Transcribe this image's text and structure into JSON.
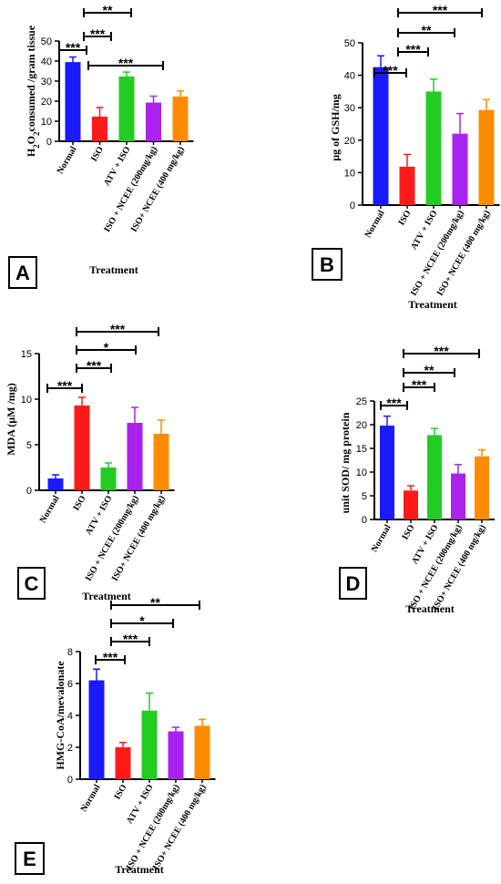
{
  "chart_data": [
    {
      "type": "bar",
      "panel": "A",
      "ylabel": "H2O2consumed /gram tissue",
      "ylabel_parts": [
        "H",
        "2",
        "O",
        "2",
        "consumed /gram tissue"
      ],
      "xlabel": "Treatment",
      "ylim": [
        0,
        50
      ],
      "yticks": [
        0,
        10,
        20,
        30,
        40,
        50
      ],
      "grid": false,
      "legend": "none",
      "categories": [
        "Normal",
        "ISO",
        "ATV + ISO",
        "ISO + NCEE (200mg/kg)",
        "ISO+ NCEE (400 mg/kg)"
      ],
      "values": [
        39.5,
        12.3,
        32.3,
        19.3,
        22.3
      ],
      "errors": [
        2.5,
        4.5,
        2.2,
        3.2,
        2.8
      ],
      "colors": [
        "#1a1aff",
        "#ff1a1a",
        "#22cc22",
        "#aa22ee",
        "#ff8c00"
      ],
      "significance": [
        {
          "from": 0,
          "to": 1,
          "label": "***"
        },
        {
          "from": 1,
          "to": 2,
          "label": "***"
        },
        {
          "from": 1,
          "to": 2,
          "label": "**"
        },
        {
          "from": 1,
          "to": 4,
          "label": "***"
        }
      ]
    },
    {
      "type": "bar",
      "panel": "B",
      "ylabel": "µg of GSH/mg",
      "xlabel": "Treatment",
      "ylim": [
        0,
        50
      ],
      "yticks": [
        0,
        10,
        20,
        30,
        40,
        50
      ],
      "grid": false,
      "legend": "none",
      "categories": [
        "Normal",
        "ISO",
        "ATV + ISO",
        "ISO + NCEE (200mg/kg)",
        "ISO+ NCEE (400 mg/kg)"
      ],
      "values": [
        42.5,
        11.8,
        35.0,
        22.0,
        29.3
      ],
      "errors": [
        3.5,
        3.8,
        3.8,
        6.2,
        3.2
      ],
      "colors": [
        "#1a1aff",
        "#ff1a1a",
        "#22cc22",
        "#aa22ee",
        "#ff8c00"
      ],
      "significance": [
        {
          "from": 0,
          "to": 1,
          "label": "***"
        },
        {
          "from": 1,
          "to": 2,
          "label": "***"
        },
        {
          "from": 1,
          "to": 3,
          "label": "**"
        },
        {
          "from": 1,
          "to": 4,
          "label": "***"
        }
      ]
    },
    {
      "type": "bar",
      "panel": "C",
      "ylabel": "MDA (µM /mg)",
      "xlabel": "Treatment",
      "ylim": [
        0,
        15
      ],
      "yticks": [
        0,
        5,
        10,
        15
      ],
      "grid": false,
      "legend": "none",
      "categories": [
        "Normal",
        "ISO",
        "ATV + ISO",
        "ISO + NCEE (200mg/kg)",
        "ISO+ NCEE (400 mg/kg)"
      ],
      "values": [
        1.3,
        9.3,
        2.5,
        7.4,
        6.2
      ],
      "errors": [
        0.4,
        0.9,
        0.5,
        1.7,
        1.5
      ],
      "colors": [
        "#1a1aff",
        "#ff1a1a",
        "#22cc22",
        "#aa22ee",
        "#ff8c00"
      ],
      "significance": [
        {
          "from": 0,
          "to": 1,
          "label": "***"
        },
        {
          "from": 1,
          "to": 2,
          "label": "***"
        },
        {
          "from": 1,
          "to": 3,
          "label": "*"
        },
        {
          "from": 1,
          "to": 4,
          "label": "***"
        }
      ]
    },
    {
      "type": "bar",
      "panel": "D",
      "ylabel": "unit SOD/ mg protein",
      "xlabel": "Treatment",
      "ylim": [
        0,
        25
      ],
      "yticks": [
        0,
        5,
        10,
        15,
        20,
        25
      ],
      "grid": false,
      "legend": "none",
      "categories": [
        "Normal",
        "ISO",
        "ATV + ISO",
        "ISO + NCEE (200mg/kg)",
        "ISO+ NCEE (400 mg/kg)"
      ],
      "values": [
        19.8,
        6.1,
        17.8,
        9.7,
        13.3
      ],
      "errors": [
        2.0,
        1.0,
        1.4,
        1.9,
        1.4
      ],
      "colors": [
        "#1a1aff",
        "#ff1a1a",
        "#22cc22",
        "#aa22ee",
        "#ff8c00"
      ],
      "significance": [
        {
          "from": 0,
          "to": 1,
          "label": "***"
        },
        {
          "from": 1,
          "to": 2,
          "label": "***"
        },
        {
          "from": 1,
          "to": 3,
          "label": "**"
        },
        {
          "from": 1,
          "to": 4,
          "label": "***"
        }
      ]
    },
    {
      "type": "bar",
      "panel": "E",
      "ylabel": "HMG-CoA/mevalonate",
      "xlabel": "Treatment",
      "ylim": [
        0,
        8
      ],
      "yticks": [
        0,
        2,
        4,
        6,
        8
      ],
      "grid": false,
      "legend": "none",
      "categories": [
        "Normal",
        "ISO",
        "ATV + ISO",
        "ISO + NCEE (200mg/kg)",
        "ISO+ NCEE (400 mg/kg)"
      ],
      "values": [
        6.2,
        2.0,
        4.3,
        3.0,
        3.35
      ],
      "errors": [
        0.7,
        0.3,
        1.1,
        0.25,
        0.4
      ],
      "colors": [
        "#1a1aff",
        "#ff1a1a",
        "#22cc22",
        "#aa22ee",
        "#ff8c00"
      ],
      "significance": [
        {
          "from": 0,
          "to": 1,
          "label": "***"
        },
        {
          "from": 1,
          "to": 2,
          "label": "***"
        },
        {
          "from": 1,
          "to": 3,
          "label": "*"
        },
        {
          "from": 1,
          "to": 4,
          "label": "**"
        }
      ]
    }
  ]
}
